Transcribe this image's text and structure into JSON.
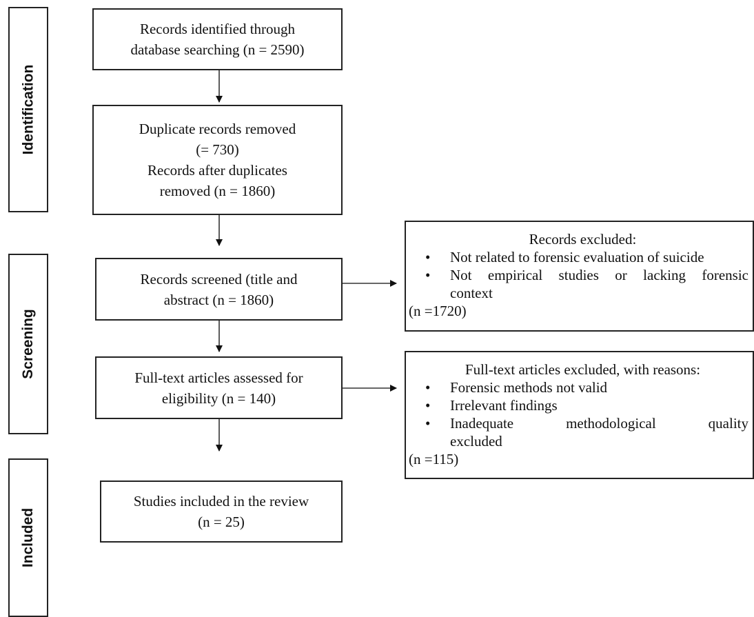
{
  "stages": {
    "identification": "Identification",
    "screening": "Screening",
    "included": "Included"
  },
  "boxes": {
    "identified": [
      "Records identified through",
      "database searching (n = 2590)"
    ],
    "duplicates": [
      "Duplicate records removed",
      "(= 730)",
      "Records after duplicates",
      "removed (n = 1860)"
    ],
    "screened": [
      "Records screened (title and",
      "abstract (n = 1860)"
    ],
    "fulltext": [
      "Full-text articles assessed for",
      "eligibility (n = 140)"
    ],
    "included": [
      "Studies included in the review",
      "(n = 25)"
    ]
  },
  "exclusions": {
    "screening": {
      "heading": "Records excluded:",
      "bullet1": "Not related to forensic evaluation of suicide",
      "bullet2a": "Not empirical studies or lacking forensic",
      "bullet2b": "context",
      "count": "(n =1720)"
    },
    "fulltext": {
      "heading": "Full-text articles excluded, with reasons:",
      "bullet1": "Forensic methods not valid",
      "bullet2": "Irrelevant findings",
      "bullet3a": "Inadequate methodological quality",
      "bullet3b": "excluded",
      "count": "(n =115)"
    }
  }
}
